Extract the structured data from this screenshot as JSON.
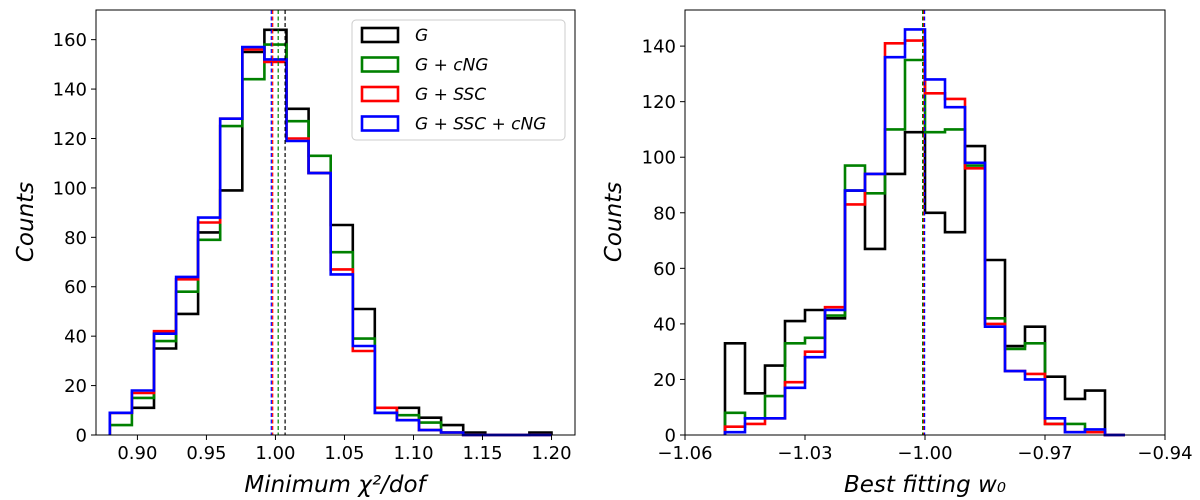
{
  "chart_data": [
    {
      "type": "histogram",
      "id": "left",
      "xlabel": "Minimum χ²/dof",
      "ylabel": "Counts",
      "xlim": [
        0.87,
        1.217
      ],
      "ylim": [
        0,
        172
      ],
      "xticks": [
        0.9,
        0.95,
        1.0,
        1.05,
        1.1,
        1.15,
        1.2
      ],
      "xtick_labels": [
        "0.90",
        "0.95",
        "1.00",
        "1.05",
        "1.10",
        "1.15",
        "1.20"
      ],
      "yticks": [
        0,
        20,
        40,
        60,
        80,
        100,
        120,
        140,
        160
      ],
      "ytick_labels": [
        "0",
        "20",
        "40",
        "60",
        "80",
        "100",
        "120",
        "140",
        "160"
      ],
      "bin_edges": [
        0.88,
        0.896,
        0.912,
        0.928,
        0.944,
        0.96,
        0.976,
        0.992,
        1.008,
        1.024,
        1.04,
        1.056,
        1.072,
        1.088,
        1.104,
        1.12,
        1.136,
        1.152,
        1.168,
        1.184,
        1.2
      ],
      "series": [
        {
          "name": "G",
          "color": "#000000",
          "values": [
            9,
            11,
            35,
            49,
            82,
            99,
            155,
            164,
            132,
            106,
            85,
            51,
            9,
            11,
            7,
            4,
            1,
            0,
            0,
            1
          ],
          "vline": 1.007
        },
        {
          "name": "G+cNG",
          "color": "#008000",
          "values": [
            4,
            15,
            38,
            58,
            79,
            125,
            144,
            158,
            127,
            113,
            74,
            39,
            9,
            8,
            5,
            1,
            0,
            0,
            0,
            0
          ],
          "vline": 1.002
        },
        {
          "name": "G+SSC",
          "color": "#ff0000",
          "values": [
            9,
            17,
            42,
            63,
            86,
            128,
            156,
            151,
            120,
            106,
            67,
            34,
            11,
            6,
            2,
            1,
            0,
            0,
            0,
            0
          ],
          "vline": 0.998
        },
        {
          "name": "G+SSC+cNG",
          "color": "#0000ff",
          "values": [
            9,
            18,
            41,
            64,
            88,
            128,
            157,
            152,
            119,
            106,
            65,
            36,
            9,
            6,
            2,
            1,
            0,
            0,
            0,
            0
          ],
          "vline": 0.997
        }
      ],
      "legend": {
        "position": "top-right",
        "entries": [
          {
            "label": "G",
            "color": "#000000"
          },
          {
            "label": "G + cNG",
            "color": "#008000"
          },
          {
            "label": "G + SSC",
            "color": "#ff0000"
          },
          {
            "label": "G + SSC + cNG",
            "color": "#0000ff"
          }
        ]
      }
    },
    {
      "type": "histogram",
      "id": "right",
      "xlabel": "Best fitting w₀",
      "ylabel": "Counts",
      "xlim": [
        -1.06,
        -0.94
      ],
      "ylim": [
        0,
        153
      ],
      "xticks": [
        -1.06,
        -1.03,
        -1.0,
        -0.97,
        -0.94
      ],
      "xtick_labels": [
        "−1.06",
        "−1.03",
        "−1.00",
        "−0.97",
        "−0.94"
      ],
      "yticks": [
        0,
        20,
        40,
        60,
        80,
        100,
        120,
        140
      ],
      "ytick_labels": [
        "0",
        "20",
        "40",
        "60",
        "80",
        "100",
        "120",
        "140"
      ],
      "bin_edges": [
        -1.05,
        -1.045,
        -1.04,
        -1.035,
        -1.03,
        -1.025,
        -1.02,
        -1.015,
        -1.01,
        -1.005,
        -1.0,
        -0.995,
        -0.99,
        -0.985,
        -0.98,
        -0.975,
        -0.97,
        -0.965,
        -0.96,
        -0.955,
        -0.95
      ],
      "series": [
        {
          "name": "G",
          "color": "#000000",
          "values": [
            33,
            15,
            25,
            41,
            45,
            42,
            88,
            67,
            94,
            109,
            80,
            73,
            104,
            63,
            32,
            39,
            21,
            13,
            16,
            0
          ],
          "vline": -1.0005
        },
        {
          "name": "G+cNG",
          "color": "#008000",
          "values": [
            8,
            6,
            14,
            33,
            35,
            43,
            97,
            87,
            110,
            135,
            109,
            110,
            97,
            42,
            31,
            33,
            4,
            4,
            1,
            0
          ],
          "vline": -1.0006
        },
        {
          "name": "G+SSC",
          "color": "#ff0000",
          "values": [
            3,
            4,
            6,
            19,
            30,
            46,
            83,
            94,
            141,
            142,
            123,
            121,
            96,
            40,
            23,
            22,
            4,
            1,
            1,
            0
          ],
          "vline": -1.0003
        },
        {
          "name": "G+SSC+cNG",
          "color": "#0000ff",
          "values": [
            1,
            6,
            6,
            17,
            28,
            45,
            88,
            94,
            136,
            146,
            128,
            118,
            98,
            39,
            23,
            20,
            6,
            1,
            2,
            0
          ],
          "vline": -1.0001
        }
      ]
    }
  ]
}
